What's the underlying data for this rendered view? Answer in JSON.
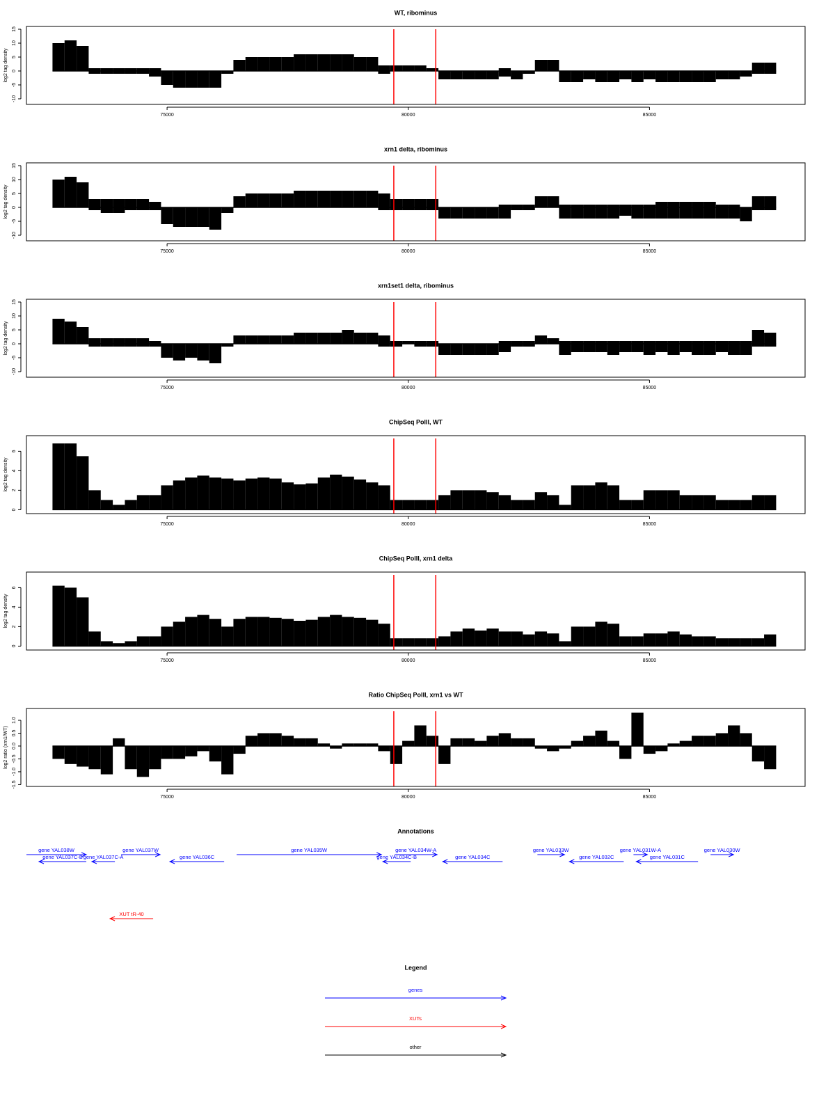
{
  "chart_data": [
    {
      "type": "bar",
      "title": "WT, ribominus",
      "ylabel": "log2 tag density",
      "color": "#000000",
      "x": [
        72750,
        73000,
        73250,
        73500,
        73750,
        74000,
        74250,
        74500,
        74750,
        75000,
        75250,
        75500,
        75750,
        76000,
        76250,
        76500,
        76750,
        77000,
        77250,
        77500,
        77750,
        78000,
        78250,
        78500,
        78750,
        79000,
        79250,
        79500,
        79750,
        80000,
        80250,
        80500,
        80750,
        81000,
        81250,
        81500,
        81750,
        82000,
        82250,
        82500,
        82750,
        83000,
        83250,
        83500,
        83750,
        84000,
        84250,
        84500,
        84750,
        85000,
        85250,
        85500,
        85750,
        86000,
        86250,
        86500,
        86750,
        87000,
        87250,
        87500
      ],
      "values": [
        10,
        11,
        9,
        1,
        1,
        1,
        1,
        1,
        1,
        0,
        0,
        0,
        0,
        0,
        0,
        4,
        5,
        5,
        5,
        5,
        6,
        6,
        6,
        6,
        6,
        5,
        5,
        2,
        2,
        2,
        2,
        1,
        0,
        0,
        0,
        0,
        0,
        1,
        0,
        0,
        4,
        4,
        0,
        0,
        0,
        0,
        0,
        0,
        0,
        0,
        0,
        0,
        0,
        0,
        0,
        0,
        0,
        0,
        3,
        3
      ],
      "values_negative": [
        0,
        0,
        0,
        -1,
        -1,
        -1,
        -1,
        -1,
        -2,
        -5,
        -6,
        -6,
        -6,
        -6,
        -1,
        0,
        0,
        0,
        0,
        0,
        0,
        0,
        0,
        0,
        0,
        0,
        0,
        -1,
        0,
        0,
        0,
        0,
        -3,
        -3,
        -3,
        -3,
        -3,
        -2,
        -3,
        -1,
        0,
        0,
        -4,
        -4,
        -3,
        -4,
        -4,
        -3,
        -4,
        -3,
        -4,
        -4,
        -4,
        -4,
        -4,
        -3,
        -3,
        -2,
        -1,
        -1
      ],
      "xlim": [
        72085,
        88225
      ],
      "xticks": [
        75000,
        80000,
        85000
      ],
      "ylim": [
        -12,
        16
      ],
      "yticks": [
        -10,
        -5,
        0,
        5,
        10,
        15
      ],
      "highlight_x": [
        79700,
        80570
      ],
      "highlight_color": "#ff0000"
    },
    {
      "type": "bar",
      "title": "xrn1 delta, ribominus",
      "ylabel": "log2 tag density",
      "color": "#000000",
      "x": [
        72750,
        73000,
        73250,
        73500,
        73750,
        74000,
        74250,
        74500,
        74750,
        75000,
        75250,
        75500,
        75750,
        76000,
        76250,
        76500,
        76750,
        77000,
        77250,
        77500,
        77750,
        78000,
        78250,
        78500,
        78750,
        79000,
        79250,
        79500,
        79750,
        80000,
        80250,
        80500,
        80750,
        81000,
        81250,
        81500,
        81750,
        82000,
        82250,
        82500,
        82750,
        83000,
        83250,
        83500,
        83750,
        84000,
        84250,
        84500,
        84750,
        85000,
        85250,
        85500,
        85750,
        86000,
        86250,
        86500,
        86750,
        87000,
        87250,
        87500
      ],
      "values": [
        10,
        11,
        9,
        3,
        3,
        3,
        3,
        3,
        2,
        0,
        0,
        0,
        0,
        0,
        0,
        4,
        5,
        5,
        5,
        5,
        6,
        6,
        6,
        6,
        6,
        6,
        6,
        5,
        3,
        3,
        3,
        3,
        0,
        0,
        0,
        0,
        0,
        1,
        1,
        1,
        4,
        4,
        1,
        1,
        1,
        1,
        1,
        1,
        1,
        1,
        2,
        2,
        2,
        2,
        2,
        1,
        1,
        0,
        4,
        4
      ],
      "values_negative": [
        0,
        0,
        0,
        -1,
        -2,
        -2,
        -1,
        -1,
        -1,
        -6,
        -7,
        -7,
        -7,
        -8,
        -2,
        0,
        0,
        0,
        0,
        0,
        0,
        0,
        0,
        0,
        0,
        0,
        0,
        -1,
        -1,
        -1,
        -1,
        -1,
        -4,
        -4,
        -4,
        -4,
        -4,
        -4,
        -1,
        -1,
        0,
        0,
        -4,
        -4,
        -4,
        -4,
        -4,
        -3,
        -4,
        -4,
        -4,
        -4,
        -4,
        -4,
        -4,
        -4,
        -4,
        -5,
        -1,
        -1
      ],
      "xlim": [
        72085,
        88225
      ],
      "xticks": [
        75000,
        80000,
        85000
      ],
      "ylim": [
        -12,
        16
      ],
      "yticks": [
        -10,
        -5,
        0,
        5,
        10,
        15
      ],
      "highlight_x": [
        79700,
        80570
      ],
      "highlight_color": "#ff0000"
    },
    {
      "type": "bar",
      "title": "xrn1set1 delta, ribominus",
      "ylabel": "log2 tag density",
      "color": "#000000",
      "x": [
        72750,
        73000,
        73250,
        73500,
        73750,
        74000,
        74250,
        74500,
        74750,
        75000,
        75250,
        75500,
        75750,
        76000,
        76250,
        76500,
        76750,
        77000,
        77250,
        77500,
        77750,
        78000,
        78250,
        78500,
        78750,
        79000,
        79250,
        79500,
        79750,
        80000,
        80250,
        80500,
        80750,
        81000,
        81250,
        81500,
        81750,
        82000,
        82250,
        82500,
        82750,
        83000,
        83250,
        83500,
        83750,
        84000,
        84250,
        84500,
        84750,
        85000,
        85250,
        85500,
        85750,
        86000,
        86250,
        86500,
        86750,
        87000,
        87250,
        87500
      ],
      "values": [
        9,
        8,
        6,
        2,
        2,
        2,
        2,
        2,
        1,
        0,
        0,
        0,
        0,
        0,
        0,
        3,
        3,
        3,
        3,
        3,
        4,
        4,
        4,
        4,
        5,
        4,
        4,
        3,
        1,
        1,
        1,
        1,
        0,
        0,
        0,
        0,
        0,
        1,
        1,
        1,
        3,
        2,
        1,
        1,
        1,
        1,
        1,
        1,
        1,
        1,
        1,
        1,
        1,
        1,
        1,
        1,
        1,
        1,
        5,
        4
      ],
      "values_negative": [
        0,
        0,
        0,
        -1,
        -1,
        -1,
        -1,
        -1,
        -1,
        -5,
        -6,
        -5,
        -6,
        -7,
        -1,
        0,
        0,
        0,
        0,
        0,
        0,
        0,
        0,
        0,
        0,
        0,
        0,
        -1,
        -1,
        0,
        -1,
        -1,
        -4,
        -4,
        -4,
        -4,
        -4,
        -3,
        -1,
        -1,
        0,
        0,
        -4,
        -3,
        -3,
        -3,
        -4,
        -3,
        -3,
        -4,
        -3,
        -4,
        -3,
        -4,
        -4,
        -3,
        -4,
        -4,
        -1,
        -1
      ],
      "xlim": [
        72085,
        88225
      ],
      "xticks": [
        75000,
        80000,
        85000
      ],
      "ylim": [
        -12,
        16
      ],
      "yticks": [
        -10,
        -5,
        0,
        5,
        10,
        15
      ],
      "highlight_x": [
        79700,
        80570
      ],
      "highlight_color": "#ff0000"
    },
    {
      "type": "bar",
      "title": "ChipSeq PolII, WT",
      "ylabel": "log2 tag density",
      "color": "#000000",
      "x": [
        72750,
        73000,
        73250,
        73500,
        73750,
        74000,
        74250,
        74500,
        74750,
        75000,
        75250,
        75500,
        75750,
        76000,
        76250,
        76500,
        76750,
        77000,
        77250,
        77500,
        77750,
        78000,
        78250,
        78500,
        78750,
        79000,
        79250,
        79500,
        79750,
        80000,
        80250,
        80500,
        80750,
        81000,
        81250,
        81500,
        81750,
        82000,
        82250,
        82500,
        82750,
        83000,
        83250,
        83500,
        83750,
        84000,
        84250,
        84500,
        84750,
        85000,
        85250,
        85500,
        85750,
        86000,
        86250,
        86500,
        86750,
        87000,
        87250,
        87500
      ],
      "values": [
        6.8,
        6.8,
        5.5,
        2,
        1,
        0.5,
        1,
        1.5,
        1.5,
        2.5,
        3,
        3.3,
        3.5,
        3.3,
        3.2,
        3,
        3.2,
        3.3,
        3.2,
        2.8,
        2.6,
        2.7,
        3.3,
        3.6,
        3.4,
        3.1,
        2.8,
        2.5,
        1,
        1,
        1,
        1,
        1.5,
        2,
        2,
        2,
        1.8,
        1.5,
        1,
        1,
        1.8,
        1.5,
        0.5,
        2.5,
        2.5,
        2.8,
        2.5,
        1,
        1,
        2,
        2,
        2,
        1.5,
        1.5,
        1.5,
        1,
        1,
        1,
        1.5,
        1.5
      ],
      "xlim": [
        72085,
        88225
      ],
      "xticks": [
        75000,
        80000,
        85000
      ],
      "ylim": [
        -0.4,
        7.6
      ],
      "yticks": [
        0,
        2,
        4,
        6
      ],
      "highlight_x": [
        79700,
        80570
      ],
      "highlight_color": "#ff0000"
    },
    {
      "type": "bar",
      "title": "ChipSeq PolII, xrn1 delta",
      "ylabel": "log2 tag density",
      "color": "#000000",
      "x": [
        72750,
        73000,
        73250,
        73500,
        73750,
        74000,
        74250,
        74500,
        74750,
        75000,
        75250,
        75500,
        75750,
        76000,
        76250,
        76500,
        76750,
        77000,
        77250,
        77500,
        77750,
        78000,
        78250,
        78500,
        78750,
        79000,
        79250,
        79500,
        79750,
        80000,
        80250,
        80500,
        80750,
        81000,
        81250,
        81500,
        81750,
        82000,
        82250,
        82500,
        82750,
        83000,
        83250,
        83500,
        83750,
        84000,
        84250,
        84500,
        84750,
        85000,
        85250,
        85500,
        85750,
        86000,
        86250,
        86500,
        86750,
        87000,
        87250,
        87500
      ],
      "values": [
        6.2,
        6,
        5,
        1.5,
        0.5,
        0.3,
        0.5,
        1,
        1,
        2,
        2.5,
        3,
        3.2,
        2.8,
        2,
        2.8,
        3,
        3,
        2.9,
        2.8,
        2.6,
        2.7,
        3,
        3.2,
        3,
        2.9,
        2.7,
        2.3,
        0.8,
        0.8,
        0.8,
        0.8,
        1,
        1.5,
        1.8,
        1.6,
        1.8,
        1.5,
        1.5,
        1.2,
        1.5,
        1.3,
        0.5,
        2,
        2,
        2.5,
        2.3,
        1,
        1,
        1.3,
        1.3,
        1.5,
        1.2,
        1,
        1,
        0.8,
        0.8,
        0.8,
        0.8,
        1.2
      ],
      "xlim": [
        72085,
        88225
      ],
      "xticks": [
        75000,
        80000,
        85000
      ],
      "ylim": [
        -0.4,
        7.6
      ],
      "yticks": [
        0,
        2,
        4,
        6
      ],
      "highlight_x": [
        79700,
        80570
      ],
      "highlight_color": "#ff0000"
    },
    {
      "type": "bar",
      "title": "Ratio ChipSeq PolII, xrn1 vs WT",
      "ylabel": "log2 ratio (xrn1/WT)",
      "color": "#000000",
      "x": [
        72750,
        73000,
        73250,
        73500,
        73750,
        74000,
        74250,
        74500,
        74750,
        75000,
        75250,
        75500,
        75750,
        76000,
        76250,
        76500,
        76750,
        77000,
        77250,
        77500,
        77750,
        78000,
        78250,
        78500,
        78750,
        79000,
        79250,
        79500,
        79750,
        80000,
        80250,
        80500,
        80750,
        81000,
        81250,
        81500,
        81750,
        82000,
        82250,
        82500,
        82750,
        83000,
        83250,
        83500,
        83750,
        84000,
        84250,
        84500,
        84750,
        85000,
        85250,
        85500,
        85750,
        86000,
        86250,
        86500,
        86750,
        87000,
        87250,
        87500
      ],
      "values": [
        -0.5,
        -0.7,
        -0.8,
        -0.9,
        -1.1,
        0.3,
        -0.9,
        -1.2,
        -0.9,
        -0.5,
        -0.5,
        -0.4,
        -0.2,
        -0.6,
        -1.1,
        -0.3,
        0.4,
        0.5,
        0.5,
        0.4,
        0.3,
        0.3,
        0.1,
        -0.1,
        0.1,
        0.1,
        0.1,
        -0.2,
        -0.7,
        0.2,
        0.8,
        0.4,
        -0.7,
        0.3,
        0.3,
        0.2,
        0.4,
        0.5,
        0.3,
        0.3,
        -0.1,
        -0.2,
        -0.1,
        0.2,
        0.4,
        0.6,
        0.2,
        -0.5,
        1.3,
        -0.3,
        -0.2,
        0.1,
        0.2,
        0.4,
        0.4,
        0.5,
        0.8,
        0.5,
        -0.6,
        -0.9
      ],
      "xlim": [
        72085,
        88225
      ],
      "xticks": [
        75000,
        80000,
        85000
      ],
      "ylim": [
        -1.57,
        1.46
      ],
      "yticks": [
        {
          "value": -1.5,
          "label": "-1.5"
        },
        {
          "value": -1,
          "label": "-1.0"
        },
        {
          "value": -0.5,
          "label": "-0.5"
        },
        {
          "value": 0,
          "label": "0.0"
        },
        {
          "value": 0.5,
          "label": "0.5"
        },
        {
          "value": 1,
          "label": "1.0"
        }
      ],
      "highlight_x": [
        79700,
        80570
      ],
      "highlight_color": "#ff0000"
    }
  ],
  "annotations": {
    "title": "Annotations",
    "xlim": [
      72085,
      88225
    ],
    "genes": {
      "color": "#0000ff",
      "features": [
        {
          "label": "gene YAL038W",
          "from": 72085,
          "to": 73326
        },
        {
          "label": "gene YAL037C-B",
          "from": 73326,
          "to": 72345
        },
        {
          "label": "gene YAL037C-A",
          "from": 73918,
          "to": 73441
        },
        {
          "label": "gene YAL037W",
          "from": 74047,
          "to": 74856
        },
        {
          "label": "gene YAL036C",
          "from": 76183,
          "to": 75058
        },
        {
          "label": "gene YAL035W",
          "from": 76443,
          "to": 79444
        },
        {
          "label": "gene YAL034W-A",
          "from": 79718,
          "to": 80598
        },
        {
          "label": "gene YAL034C-B",
          "from": 80050,
          "to": 79473
        },
        {
          "label": "gene YAL034C",
          "from": 81955,
          "to": 80714
        },
        {
          "label": "gene YAL033W",
          "from": 82677,
          "to": 83239
        },
        {
          "label": "gene YAL032C",
          "from": 84466,
          "to": 83340
        },
        {
          "label": "gene YAL031W-A",
          "from": 84668,
          "to": 84956
        },
        {
          "label": "gene YAL031C",
          "from": 86006,
          "to": 84726
        },
        {
          "label": "gene YAL030W",
          "from": 86266,
          "to": 86742
        }
      ]
    },
    "xuts": {
      "color": "#ff0000",
      "features": [
        {
          "label": "XUT tR-40",
          "from": 74711,
          "to": 73817
        }
      ]
    }
  },
  "legend": {
    "title": "Legend",
    "entries": [
      {
        "label": "genes",
        "color": "#0000ff"
      },
      {
        "label": "XUTs",
        "color": "#ff0000"
      },
      {
        "label": "other",
        "color": "#000000"
      }
    ]
  }
}
